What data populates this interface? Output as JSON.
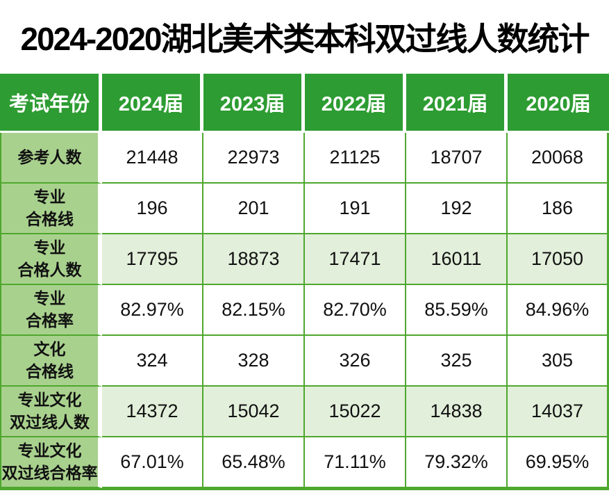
{
  "title": "2024-2020湖北美术类本科双过线人数统计",
  "colors": {
    "header_green": "#2d9c32",
    "label_green": "#a9d18e",
    "shaded_row_green": "#e2efda",
    "grid_line_green": "#4ea72e",
    "header_text": "#ffffff",
    "body_text": "#111111",
    "title_text": "#000000",
    "background": "#ffffff"
  },
  "table": {
    "header": [
      "考试年份",
      "2024届",
      "2023届",
      "2022届",
      "2021届",
      "2020届"
    ],
    "rows": [
      {
        "label": "参考人数",
        "shaded": false,
        "values": [
          "21448",
          "22973",
          "21125",
          "18707",
          "20068"
        ]
      },
      {
        "label": "专业\n合格线",
        "shaded": false,
        "values": [
          "196",
          "201",
          "191",
          "192",
          "186"
        ]
      },
      {
        "label": "专业\n合格人数",
        "shaded": true,
        "values": [
          "17795",
          "18873",
          "17471",
          "16011",
          "17050"
        ]
      },
      {
        "label": "专业\n合格率",
        "shaded": false,
        "values": [
          "82.97%",
          "82.15%",
          "82.70%",
          "85.59%",
          "84.96%"
        ]
      },
      {
        "label": "文化\n合格线",
        "shaded": false,
        "values": [
          "324",
          "328",
          "326",
          "325",
          "305"
        ]
      },
      {
        "label": "专业文化\n双过线人数",
        "shaded": true,
        "values": [
          "14372",
          "15042",
          "15022",
          "14838",
          "14037"
        ]
      },
      {
        "label": "专业文化\n双过线合格率",
        "shaded": false,
        "values": [
          "67.01%",
          "65.48%",
          "71.11%",
          "79.32%",
          "69.95%"
        ]
      }
    ]
  },
  "chart_data": {
    "type": "table",
    "title": "2024-2020湖北美术类本科双过线人数统计",
    "columns": [
      "考试年份",
      "2024届",
      "2023届",
      "2022届",
      "2021届",
      "2020届"
    ],
    "rows": [
      [
        "参考人数",
        "21448",
        "22973",
        "21125",
        "18707",
        "20068"
      ],
      [
        "专业合格线",
        "196",
        "201",
        "191",
        "192",
        "186"
      ],
      [
        "专业合格人数",
        "17795",
        "18873",
        "17471",
        "16011",
        "17050"
      ],
      [
        "专业合格率",
        "82.97%",
        "82.15%",
        "82.70%",
        "85.59%",
        "84.96%"
      ],
      [
        "文化合格线",
        "324",
        "328",
        "326",
        "325",
        "305"
      ],
      [
        "专业文化双过线人数",
        "14372",
        "15042",
        "15022",
        "14838",
        "14037"
      ],
      [
        "专业文化双过线合格率",
        "67.01%",
        "65.48%",
        "71.11%",
        "79.32%",
        "69.95%"
      ]
    ]
  }
}
